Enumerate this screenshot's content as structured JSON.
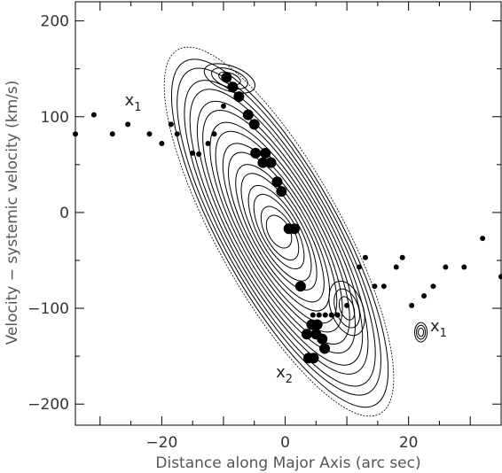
{
  "chart_data": {
    "type": "scatter",
    "xlabel": "Distance along Major Axis (arc sec)",
    "ylabel": "Velocity − systemic velocity (km/s)",
    "xlim": [
      -34,
      35
    ],
    "ylim": [
      -222,
      220
    ],
    "x_ticks": [
      -20,
      0,
      20
    ],
    "y_ticks": [
      200,
      100,
      0,
      -100,
      -200
    ],
    "grid": false,
    "legend": "none",
    "annotations": [
      {
        "text": "x",
        "sub": "1",
        "x": -26,
        "y": 112
      },
      {
        "text": "x",
        "sub": "1",
        "x": 23.5,
        "y": -124
      },
      {
        "text": "x",
        "sub": "2",
        "x": -1.5,
        "y": -172
      }
    ],
    "series": [
      {
        "marker": "small-dot",
        "points": [
          [
            -34,
            82
          ],
          [
            -31,
            102
          ],
          [
            -28,
            82
          ],
          [
            -25.5,
            92
          ],
          [
            -22,
            82
          ],
          [
            -20,
            72
          ],
          [
            -18.5,
            92
          ],
          [
            -17.5,
            82
          ],
          [
            -15,
            62
          ],
          [
            -14,
            61
          ],
          [
            -12.5,
            72
          ],
          [
            -11.5,
            82
          ],
          [
            -10,
            111
          ],
          [
            4.5,
            -107
          ],
          [
            5.5,
            -107
          ],
          [
            6.5,
            -107
          ],
          [
            7.5,
            -107
          ],
          [
            8.5,
            -107
          ],
          [
            10,
            -97
          ],
          [
            12,
            -57
          ],
          [
            13,
            -47
          ],
          [
            14.5,
            -77
          ],
          [
            16,
            -77
          ],
          [
            18,
            -57
          ],
          [
            19,
            -47
          ],
          [
            20.5,
            -97
          ],
          [
            22.5,
            -87
          ],
          [
            24,
            -77
          ],
          [
            26,
            -57
          ],
          [
            29,
            -57
          ],
          [
            32,
            -27
          ],
          [
            35,
            -67
          ]
        ]
      },
      {
        "marker": "large-dot",
        "points": [
          [
            -9.5,
            141
          ],
          [
            -8.5,
            131
          ],
          [
            -7.5,
            121
          ],
          [
            -6,
            102
          ],
          [
            -5,
            92
          ],
          [
            -4.8,
            62
          ],
          [
            -3.6,
            52
          ],
          [
            -3.2,
            62
          ],
          [
            -2.3,
            52
          ],
          [
            -1.3,
            32
          ],
          [
            -0.6,
            22
          ],
          [
            0.6,
            -17
          ],
          [
            1.5,
            -17
          ],
          [
            2.5,
            -77
          ],
          [
            3.5,
            -127
          ],
          [
            4.3,
            -117
          ],
          [
            5.2,
            -117
          ],
          [
            6,
            -132
          ],
          [
            6.4,
            -142
          ],
          [
            3.8,
            -152
          ],
          [
            4.6,
            -152
          ],
          [
            5,
            -127
          ]
        ]
      }
    ]
  }
}
